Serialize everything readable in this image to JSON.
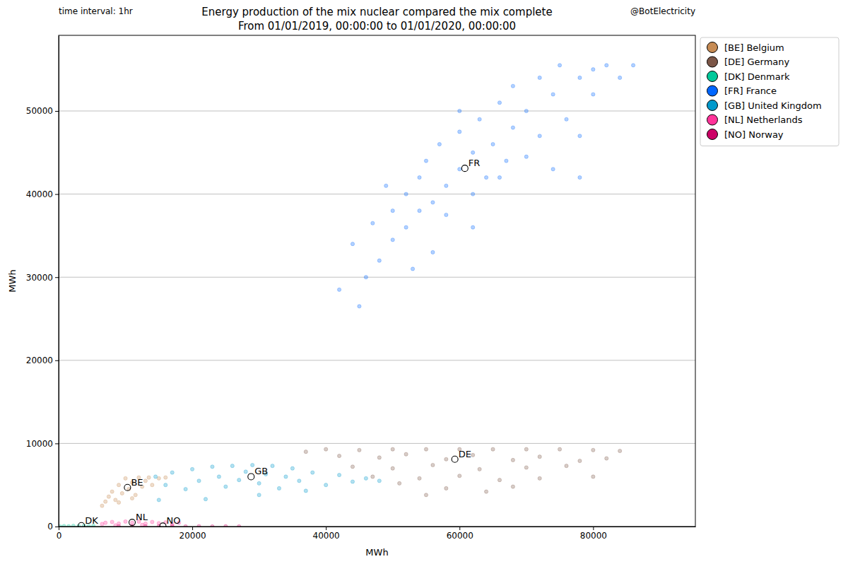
{
  "chart_data": {
    "type": "scatter",
    "title": "Energy production of the mix nuclear compared the mix complete",
    "subtitle": "From 01/01/2019, 00:00:00 to 01/01/2020, 00:00:00",
    "top_left_text": "time interval: 1hr",
    "top_right_text": "@BotElectricity",
    "x_label": "MWh",
    "y_label": "MWh",
    "xlim": [
      0,
      95300
    ],
    "ylim": [
      0,
      59100
    ],
    "xticks": [
      0,
      20000,
      40000,
      60000,
      80000
    ],
    "yticks": [
      0,
      10000,
      20000,
      30000,
      40000,
      50000
    ],
    "grid": true,
    "legend": "right",
    "marker": "circle",
    "series": [
      {
        "name": "[BE] Belgium",
        "color": "#c68b54",
        "x": [
          6500,
          7000,
          7500,
          8000,
          8500,
          9000,
          9500,
          10000,
          10500,
          11000,
          11500,
          12000,
          12500,
          13000,
          13500,
          14000,
          15000,
          16000,
          9000,
          11000
        ],
        "values": [
          2500,
          3000,
          3600,
          4200,
          3200,
          5000,
          4000,
          5800,
          4500,
          5300,
          3800,
          5900,
          4800,
          5500,
          5900,
          5000,
          5800,
          5900,
          2900,
          3400
        ]
      },
      {
        "name": "[DE] Germany",
        "color": "#7b5647",
        "x": [
          37000,
          40000,
          45000,
          50000,
          55000,
          60000,
          65000,
          70000,
          75000,
          80000,
          84000,
          42000,
          48000,
          52000,
          58000,
          62000,
          68000,
          72000,
          78000,
          82000,
          44000,
          50000,
          56000,
          63000,
          70000,
          76000,
          47000,
          54000,
          60000,
          66000,
          72000,
          80000,
          51000,
          58000,
          64000,
          55000,
          68000
        ],
        "values": [
          9000,
          9300,
          9200,
          9300,
          9300,
          9300,
          9300,
          9300,
          9300,
          9200,
          9100,
          8500,
          8300,
          8700,
          8100,
          8600,
          8000,
          8400,
          7900,
          8200,
          7200,
          7000,
          7400,
          6900,
          7100,
          7300,
          6000,
          5800,
          6100,
          5600,
          5800,
          6000,
          5200,
          4600,
          4200,
          3800,
          4800
        ]
      },
      {
        "name": "[DK] Denmark",
        "color": "#00c99b",
        "x": [
          200,
          800,
          1500,
          2200,
          3000,
          3800,
          4500,
          5200
        ],
        "values": [
          20,
          50,
          30,
          80,
          60,
          100,
          40,
          70
        ]
      },
      {
        "name": "[FR] France",
        "color": "#0066ff",
        "x": [
          42000,
          45000,
          46000,
          44000,
          47000,
          48000,
          50000,
          50000,
          52000,
          52000,
          54000,
          54000,
          55000,
          56000,
          57000,
          58000,
          58000,
          60000,
          60000,
          62000,
          62000,
          63000,
          64000,
          65000,
          66000,
          67000,
          68000,
          68000,
          70000,
          70000,
          72000,
          72000,
          74000,
          75000,
          76000,
          78000,
          78000,
          80000,
          80000,
          82000,
          84000,
          86000,
          60000,
          56000,
          49000,
          66000,
          74000,
          78000,
          62000,
          53000
        ],
        "values": [
          28500,
          26500,
          30000,
          34000,
          36500,
          32000,
          38000,
          34500,
          40000,
          36000,
          38000,
          42000,
          44000,
          39000,
          46000,
          41000,
          37500,
          43000,
          47500,
          40000,
          45000,
          49000,
          42000,
          46000,
          51000,
          44000,
          48000,
          53000,
          50000,
          44500,
          54000,
          47000,
          52000,
          55500,
          49000,
          54000,
          47000,
          55000,
          52000,
          55500,
          54000,
          55500,
          50000,
          33000,
          41000,
          42000,
          43000,
          42000,
          36000,
          31000
        ]
      },
      {
        "name": "[GB] United Kingdom",
        "color": "#0099cc",
        "x": [
          14500,
          16000,
          17000,
          19000,
          20000,
          21000,
          22000,
          23000,
          24000,
          25000,
          26000,
          27000,
          28000,
          29000,
          30000,
          31000,
          32000,
          33000,
          34000,
          35000,
          36000,
          38000,
          40000,
          42000,
          44000,
          46000,
          48000,
          37000,
          30000,
          15000
        ],
        "values": [
          6000,
          5000,
          6500,
          4500,
          6900,
          5500,
          3300,
          7200,
          6000,
          4800,
          7300,
          5600,
          6600,
          7400,
          5200,
          6300,
          7300,
          4600,
          6000,
          7000,
          5500,
          6500,
          5000,
          6200,
          5400,
          5800,
          5500,
          4300,
          3800,
          3200
        ]
      },
      {
        "name": "[NL] Netherlands",
        "color": "#ff3399",
        "x": [
          6500,
          7000,
          8000,
          9000,
          10000,
          11000,
          12000,
          13000,
          14000,
          15000,
          16000,
          17000,
          18000,
          8500,
          12500
        ],
        "values": [
          300,
          450,
          550,
          350,
          600,
          450,
          600,
          350,
          550,
          400,
          500,
          300,
          450,
          150,
          200
        ]
      },
      {
        "name": "[NO] Norway",
        "color": "#cc0066",
        "x": [
          9000,
          11000,
          13000,
          15000,
          17000,
          19000,
          21000,
          23000,
          25000,
          27000
        ],
        "values": [
          20,
          40,
          10,
          30,
          50,
          20,
          40,
          10,
          30,
          20
        ]
      }
    ],
    "annotations": [
      {
        "text": "BE",
        "x": 10300,
        "y": 4700
      },
      {
        "text": "DE",
        "x": 59300,
        "y": 8100
      },
      {
        "text": "DK",
        "x": 3400,
        "y": 100
      },
      {
        "text": "FR",
        "x": 60800,
        "y": 43100
      },
      {
        "text": "GB",
        "x": 28800,
        "y": 6000
      },
      {
        "text": "NL",
        "x": 11000,
        "y": 500
      },
      {
        "text": "NO",
        "x": 15600,
        "y": 50
      }
    ]
  }
}
